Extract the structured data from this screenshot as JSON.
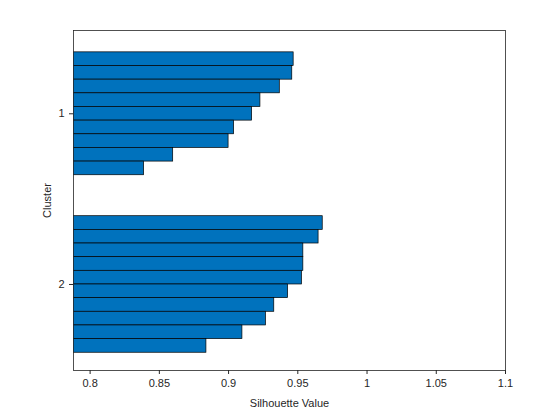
{
  "chart_data": {
    "type": "bar",
    "orientation": "horizontal",
    "xlabel": "Silhouette Value",
    "ylabel": "Cluster",
    "color": "#0072bd",
    "xlim": [
      0.788,
      1.1
    ],
    "xticks": [
      0.8,
      0.85,
      0.9,
      0.95,
      1,
      1.05,
      1.1
    ],
    "series": [
      {
        "name": "1",
        "values": [
          0.947,
          0.946,
          0.937,
          0.923,
          0.917,
          0.904,
          0.9,
          0.86,
          0.839
        ]
      },
      {
        "name": "2",
        "values": [
          0.968,
          0.965,
          0.954,
          0.954,
          0.953,
          0.943,
          0.933,
          0.927,
          0.91,
          0.884
        ]
      }
    ]
  }
}
